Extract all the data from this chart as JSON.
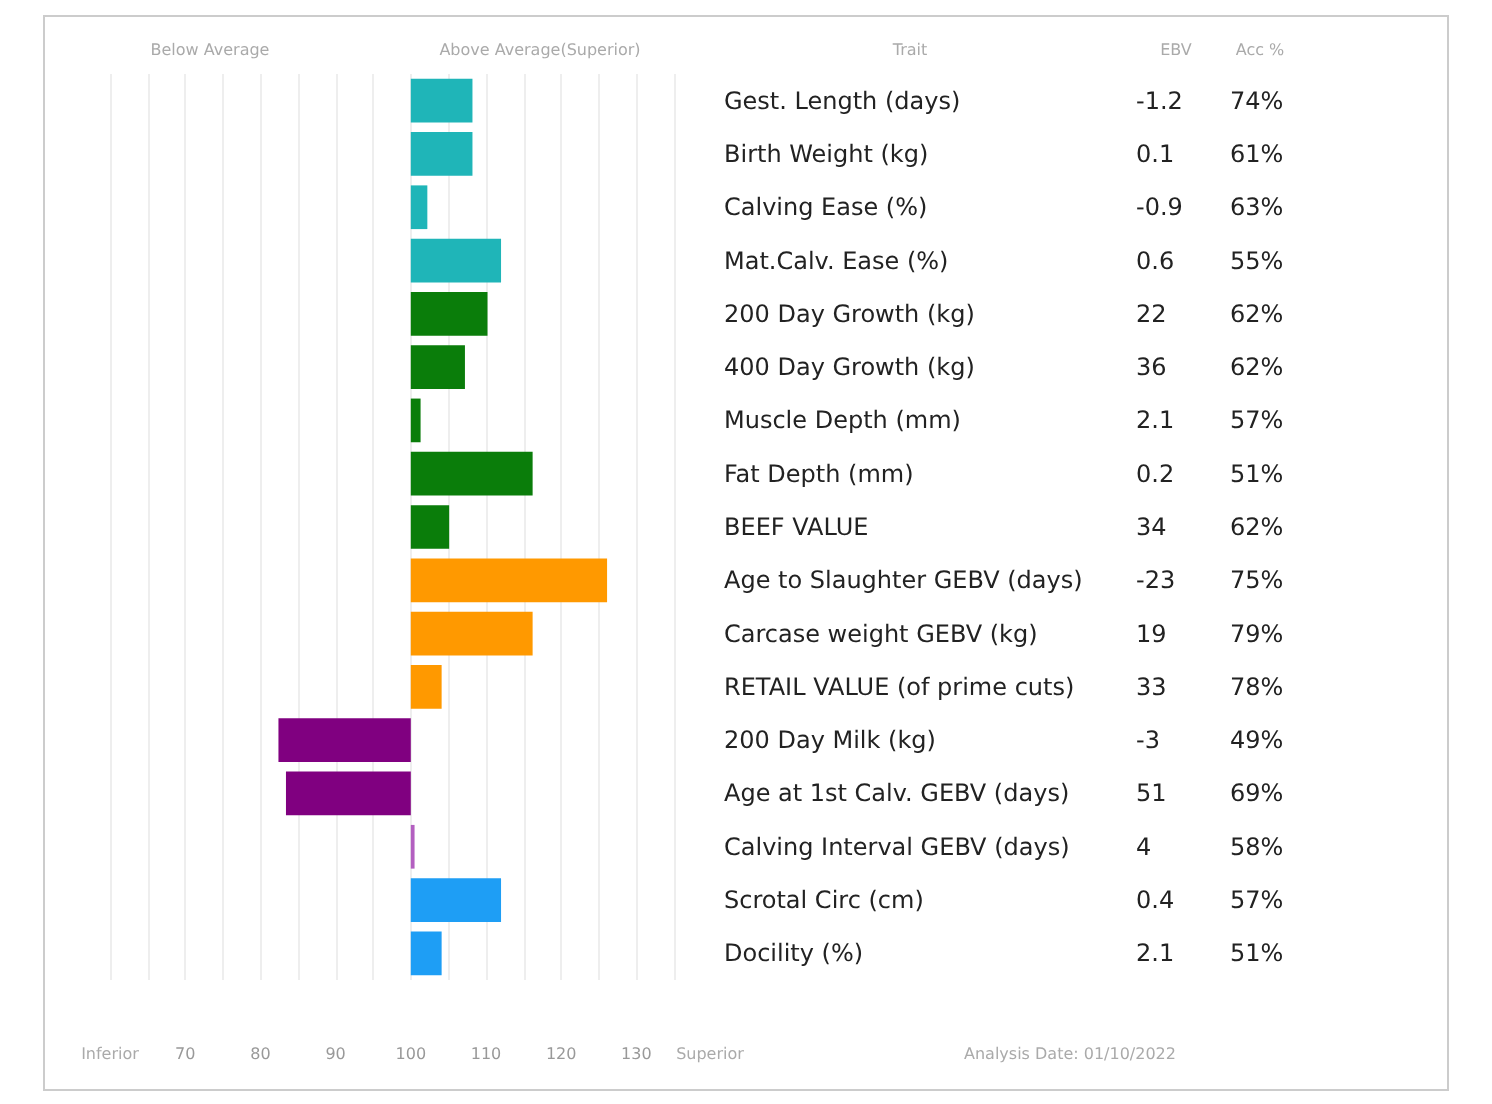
{
  "chart_data": {
    "type": "bar",
    "orientation": "horizontal",
    "categories": [
      "Gest. Length (days)",
      "Birth Weight (kg)",
      "Calving Ease (%)",
      "Mat.Calv. Ease (%)",
      "200 Day Growth (kg)",
      "400 Day Growth (kg)",
      "Muscle Depth (mm)",
      "Fat Depth (mm)",
      "BEEF VALUE",
      "Age to Slaughter GEBV (days)",
      "Carcase weight GEBV (kg)",
      "RETAIL VALUE (of prime cuts)",
      "200 Day Milk (kg)",
      "Age at 1st Calv. GEBV (days)",
      "Calving Interval GEBV (days)",
      "Scrotal Circ (cm)",
      "Docility (%)"
    ],
    "base": [
      100,
      100,
      100,
      100,
      100,
      100,
      100,
      100,
      100,
      100,
      100,
      100,
      100,
      100,
      100,
      100,
      100
    ],
    "values": [
      8.2,
      8.2,
      2.2,
      12,
      10.2,
      7.2,
      1.3,
      16.2,
      5.1,
      26.1,
      16.2,
      4.1,
      -17.6,
      -16.6,
      0.5,
      12,
      4.1
    ],
    "colors": [
      "#1fb5b8",
      "#1fb5b8",
      "#1fb5b8",
      "#1fb5b8",
      "#0a7d0a",
      "#0a7d0a",
      "#0a7d0a",
      "#0a7d0a",
      "#0a7d0a",
      "#ff9900",
      "#ff9900",
      "#ff9900",
      "#800080",
      "#800080",
      "#b35fc0",
      "#1e9ef5",
      "#1e9ef5"
    ],
    "xlim": [
      60,
      135
    ],
    "xticks": [
      {
        "value": 60,
        "label": null
      },
      {
        "value": 65,
        "label": null
      },
      70,
      {
        "value": 75,
        "label": null
      },
      80,
      {
        "value": 85,
        "label": null
      },
      90,
      {
        "value": 95,
        "label": null
      },
      100,
      {
        "value": 105,
        "label": null
      },
      110,
      {
        "value": 115,
        "label": null
      },
      120,
      {
        "value": 125,
        "label": null
      },
      130,
      {
        "value": 135,
        "label": null
      }
    ],
    "grid": "x",
    "annotations": [
      "Below Average",
      "Above Average(Superior)",
      "Trait",
      "EBV",
      "Acc %",
      "Inferior",
      "Superior",
      "Analysis Date: 01/10/2022",
      "-1.2",
      "74%",
      "0.1",
      "61%",
      "-0.9",
      "63%",
      "0.6",
      "55%",
      "22",
      "62%",
      "36",
      "62%",
      "2.1",
      "57%",
      "0.2",
      "51%",
      "34",
      "62%",
      "-23",
      "75%",
      "19",
      "79%",
      "33",
      "78%",
      "-3",
      "49%",
      "51",
      "69%",
      "4",
      "58%",
      "0.4",
      "57%",
      "2.1",
      "51%"
    ]
  }
}
